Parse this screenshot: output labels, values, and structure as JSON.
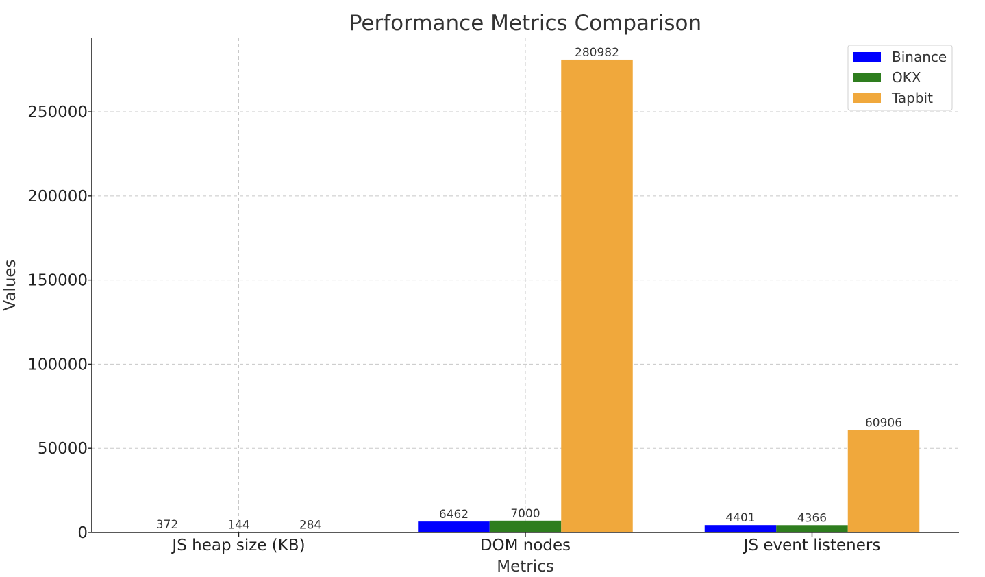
{
  "chart_data": {
    "type": "bar",
    "title": "Performance Metrics Comparison",
    "xlabel": "Metrics",
    "ylabel": "Values",
    "categories": [
      "JS heap size (KB)",
      "DOM nodes",
      "JS event listeners"
    ],
    "series": [
      {
        "name": "Binance",
        "color": "#0000ff",
        "values": [
          372,
          6462,
          4401
        ]
      },
      {
        "name": "OKX",
        "color": "#2e7d1e",
        "values": [
          144,
          7000,
          4366
        ]
      },
      {
        "name": "Tapbit",
        "color": "#f0a83c",
        "values": [
          284,
          280982,
          60906
        ]
      }
    ],
    "ylim": [
      0,
      294000
    ],
    "yticks": [
      0,
      50000,
      100000,
      150000,
      200000,
      250000
    ],
    "grid": true,
    "legend_position": "top-right"
  }
}
